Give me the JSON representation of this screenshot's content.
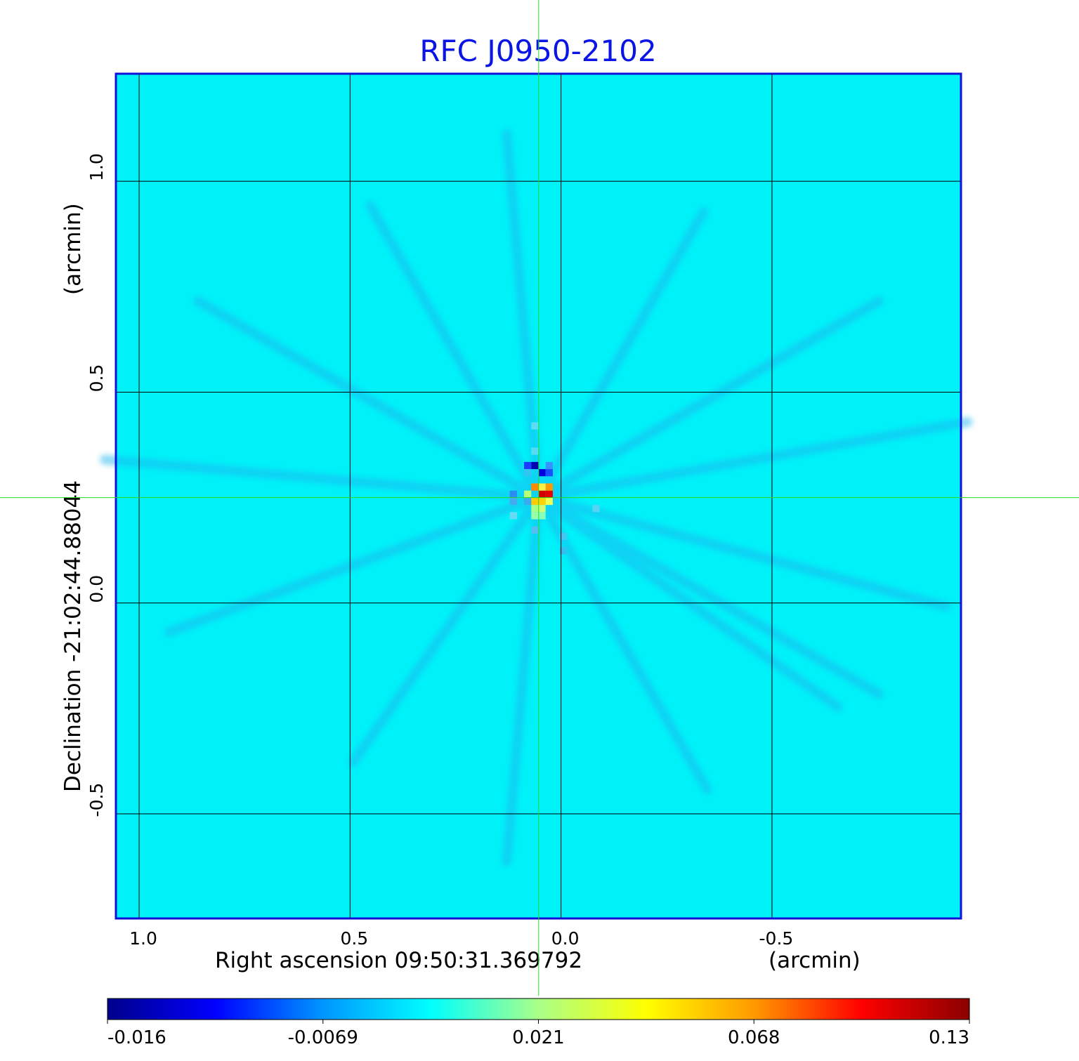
{
  "chart_data": {
    "type": "heatmap",
    "title": "RFC J0950-2102",
    "xlabel": "Right ascension  09:50:31.369792",
    "xunit": "(arcmin)",
    "ylabel": "Declination  -21:02:44.88044",
    "yunit": "(arcmin)",
    "x_ticks": [
      1.0,
      0.5,
      0.0,
      -0.5
    ],
    "x_tick_labels": [
      "1.0",
      "0.5",
      "0.0",
      "-0.5"
    ],
    "y_ticks": [
      1.0,
      0.5,
      0.0,
      -0.5
    ],
    "y_tick_labels": [
      "1.0",
      "0.5",
      "0.0",
      "-0.5"
    ],
    "xlim": [
      1.055,
      -0.948
    ],
    "ylim": [
      -0.748,
      1.255
    ],
    "grid": true,
    "crosshair": {
      "x": 0.053,
      "y": 0.25
    },
    "colorbar": {
      "colormap": "jet",
      "tick_labels": [
        "-0.016",
        "-0.0069",
        "0.021",
        "0.068",
        "0.13"
      ],
      "stops": [
        "#00008c",
        "#0000ff",
        "#0096ff",
        "#00ffff",
        "#aaff88",
        "#ffff00",
        "#ff9900",
        "#ff0000",
        "#8c0000"
      ]
    },
    "background_color": "#00f2f9",
    "features": [
      {
        "x": 0.045,
        "y": 0.258,
        "value": 0.13,
        "color": "#d40000"
      },
      {
        "x": 0.028,
        "y": 0.258,
        "value": 0.12,
        "color": "#e60000"
      },
      {
        "x": 0.062,
        "y": 0.275,
        "value": 0.075,
        "color": "#ff8a00"
      },
      {
        "x": 0.028,
        "y": 0.275,
        "value": 0.07,
        "color": "#ff9900"
      },
      {
        "x": 0.062,
        "y": 0.241,
        "value": 0.055,
        "color": "#ffcc00"
      },
      {
        "x": 0.045,
        "y": 0.241,
        "value": 0.06,
        "color": "#ffd400"
      },
      {
        "x": 0.045,
        "y": 0.275,
        "value": 0.05,
        "color": "#ffee44"
      },
      {
        "x": 0.028,
        "y": 0.241,
        "value": 0.045,
        "color": "#eeff55"
      },
      {
        "x": 0.079,
        "y": 0.258,
        "value": 0.03,
        "color": "#bbff77"
      },
      {
        "x": 0.045,
        "y": 0.224,
        "value": 0.03,
        "color": "#ccff77"
      },
      {
        "x": 0.062,
        "y": 0.224,
        "value": 0.025,
        "color": "#aaff88"
      },
      {
        "x": 0.062,
        "y": 0.207,
        "value": 0.02,
        "color": "#99ffaa"
      },
      {
        "x": 0.045,
        "y": 0.207,
        "value": 0.018,
        "color": "#88ffbb"
      },
      {
        "x": 0.062,
        "y": 0.326,
        "value": -0.016,
        "color": "#0000b4"
      },
      {
        "x": 0.045,
        "y": 0.309,
        "value": -0.015,
        "color": "#0000e0"
      },
      {
        "x": 0.028,
        "y": 0.309,
        "value": -0.012,
        "color": "#1c4cff"
      },
      {
        "x": 0.079,
        "y": 0.326,
        "value": -0.012,
        "color": "#1c3cff"
      },
      {
        "x": 0.028,
        "y": 0.326,
        "value": -0.009,
        "color": "#3a90ff"
      },
      {
        "x": 0.113,
        "y": 0.258,
        "value": -0.008,
        "color": "#2a8cf0"
      },
      {
        "x": 0.113,
        "y": 0.241,
        "value": -0.007,
        "color": "#44aaf2"
      },
      {
        "x": 0.079,
        "y": 0.241,
        "value": -0.006,
        "color": "#3aaaf0"
      },
      {
        "x": 0.062,
        "y": 0.173,
        "value": -0.004,
        "color": "#55bef0"
      },
      {
        "x": 0.079,
        "y": 0.309,
        "value": -0.004,
        "color": "#33c4f4"
      },
      {
        "x": -0.005,
        "y": 0.158,
        "value": -0.004,
        "color": "#44c8f2"
      },
      {
        "x": -0.005,
        "y": 0.124,
        "value": -0.004,
        "color": "#33c0f0"
      },
      {
        "x": -0.083,
        "y": 0.224,
        "value": -0.003,
        "color": "#55d4f4"
      },
      {
        "x": 0.062,
        "y": 0.36,
        "value": -0.003,
        "color": "#55ddf6"
      },
      {
        "x": 0.113,
        "y": 0.207,
        "value": -0.003,
        "color": "#66dcf4"
      },
      {
        "x": 0.062,
        "y": 0.42,
        "value": -0.002,
        "color": "#5cdcf6"
      }
    ]
  }
}
